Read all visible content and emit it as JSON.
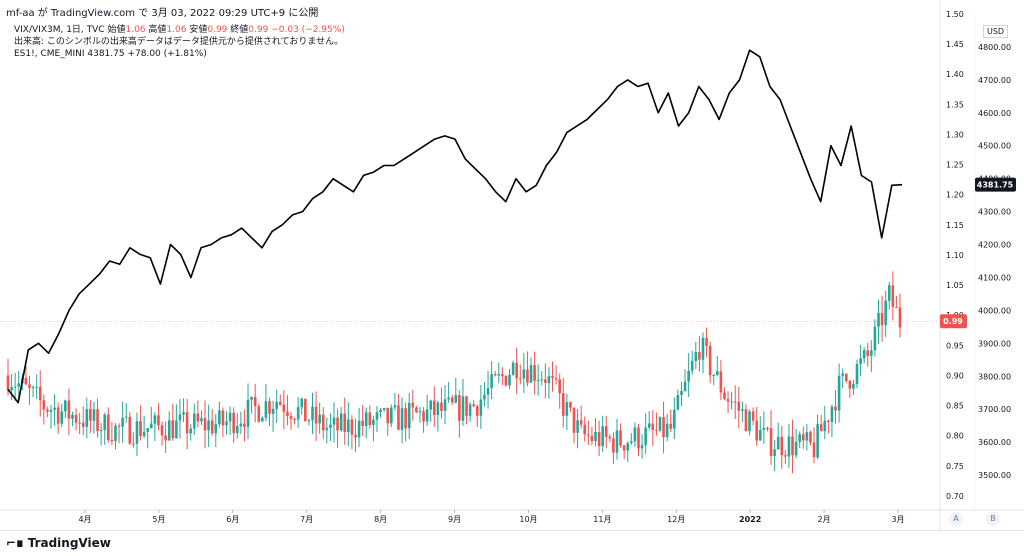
{
  "header": {
    "text": "mf-aa が TradingView.com で 3月 03, 2022 09:29 UTC+9 に公開"
  },
  "legend": {
    "line1_symbol": "VIX/VIX3M, 1日, TVC",
    "line1_o_label": "始値",
    "line1_o": "1.06",
    "line1_h_label": "高値",
    "line1_h": "1.06",
    "line1_l_label": "安値",
    "line1_l": "0.99",
    "line1_c_label": "終値",
    "line1_c": "0.99",
    "line1_change": "−0.03 (−2.95%)",
    "line2": "出来高: このシンボルの出来高データはデータ提供元から提供されておりません。",
    "line3_symbol": "ES1!, CME_MINI",
    "line3_value": "4381.75",
    "line3_change": "+78.00 (+1.81%)"
  },
  "currency": "USD",
  "footer": {
    "brand": "TradingView",
    "btn_a": "A",
    "btn_b": "B"
  },
  "colors": {
    "up": "#26a69a",
    "down": "#ef5350",
    "line": "#000000",
    "grid": "#f0f3fa",
    "ratio_tag": "#ef5350",
    "es_tag": "#131722"
  },
  "chart_data": {
    "type": "line",
    "x_ticks": [
      "4月",
      "5月",
      "6月",
      "7月",
      "8月",
      "9月",
      "10月",
      "11月",
      "12月",
      "2022",
      "2月",
      "3月"
    ],
    "right_axis_ratio": {
      "ticks": [
        "1.50",
        "1.45",
        "1.40",
        "1.35",
        "1.30",
        "1.25",
        "1.20",
        "1.15",
        "1.10",
        "1.05",
        "1.00",
        "0.95",
        "0.90",
        "0.85",
        "0.80",
        "0.75",
        "0.70"
      ],
      "range": [
        0.68,
        1.5
      ]
    },
    "right_axis_es": {
      "ticks": [
        "4800.00",
        "4700.00",
        "4600.00",
        "4500.00",
        "4400.00",
        "4300.00",
        "4200.00",
        "4100.00",
        "4000.00",
        "3900.00",
        "3800.00",
        "3700.00",
        "3600.00",
        "3500.00"
      ],
      "range": [
        3400,
        4900
      ]
    },
    "last_ratio_label": "0.99",
    "last_es_label": "4381.75",
    "series": [
      {
        "name": "ES1!, CME_MINI",
        "type": "line",
        "x": [
          "3月",
          "3月",
          "3月",
          "3月",
          "3月",
          "3月",
          "4月",
          "4月",
          "4月",
          "4月",
          "4月",
          "4月",
          "4月",
          "4月",
          "5月",
          "5月",
          "5月",
          "5月",
          "5月",
          "5月",
          "5月",
          "6月",
          "6月",
          "6月",
          "6月",
          "6月",
          "6月",
          "6月",
          "6月",
          "7月",
          "7月",
          "7月",
          "7月",
          "7月",
          "7月",
          "7月",
          "8月",
          "8月",
          "8月",
          "8月",
          "8月",
          "8月",
          "8月",
          "8月",
          "9月",
          "9月",
          "9月",
          "9月",
          "9月",
          "9月",
          "9月",
          "10月",
          "10月",
          "10月",
          "10月",
          "10月",
          "10月",
          "10月",
          "11月",
          "11月",
          "11月",
          "11月",
          "11月",
          "11月",
          "11月",
          "11月",
          "12月",
          "12月",
          "12月",
          "12月",
          "12月",
          "12月",
          "12月",
          "2022",
          "2022",
          "2022",
          "2022",
          "2022",
          "2022",
          "2022",
          "2月",
          "2月",
          "2月",
          "2月",
          "2月",
          "2月",
          "2月",
          "2月",
          "3月"
        ],
        "values": [
          3760,
          3720,
          3880,
          3900,
          3870,
          3930,
          4000,
          4050,
          4080,
          4110,
          4150,
          4140,
          4190,
          4170,
          4160,
          4080,
          4200,
          4170,
          4100,
          4190,
          4200,
          4220,
          4230,
          4250,
          4220,
          4190,
          4240,
          4260,
          4290,
          4300,
          4340,
          4360,
          4400,
          4380,
          4360,
          4410,
          4420,
          4440,
          4440,
          4460,
          4480,
          4500,
          4520,
          4530,
          4520,
          4460,
          4430,
          4400,
          4360,
          4330,
          4400,
          4360,
          4380,
          4440,
          4480,
          4540,
          4560,
          4580,
          4610,
          4640,
          4680,
          4700,
          4680,
          4690,
          4600,
          4660,
          4560,
          4600,
          4680,
          4640,
          4580,
          4660,
          4700,
          4790,
          4770,
          4680,
          4640,
          4560,
          4480,
          4400,
          4330,
          4500,
          4440,
          4560,
          4410,
          4390,
          4220,
          4380,
          4381.75
        ]
      },
      {
        "name": "VIX/VIX3M",
        "type": "candlestick",
        "count": 250,
        "last_close": 0.99
      }
    ]
  }
}
